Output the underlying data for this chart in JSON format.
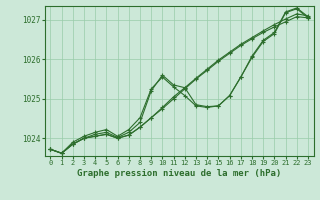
{
  "bg_color": "#cce8d8",
  "grid_color": "#99ccaa",
  "line_color": "#2d6e2d",
  "marker_color": "#2d6e2d",
  "xlabel": "Graphe pression niveau de la mer (hPa)",
  "ylim": [
    1023.55,
    1027.35
  ],
  "xlim": [
    -0.5,
    23.5
  ],
  "yticks": [
    1024,
    1025,
    1026,
    1027
  ],
  "xticks": [
    0,
    1,
    2,
    3,
    4,
    5,
    6,
    7,
    8,
    9,
    10,
    11,
    12,
    13,
    14,
    15,
    16,
    17,
    18,
    19,
    20,
    21,
    22,
    23
  ],
  "series": [
    [
      1023.72,
      1023.62,
      1023.85,
      1024.0,
      1024.05,
      1024.1,
      1024.0,
      1024.08,
      1024.28,
      1024.52,
      1024.75,
      1025.0,
      1025.25,
      1025.5,
      1025.72,
      1025.95,
      1026.15,
      1026.35,
      1026.52,
      1026.68,
      1026.82,
      1026.95,
      1027.08,
      1027.05
    ],
    [
      1023.72,
      1023.62,
      1023.85,
      1024.0,
      1024.05,
      1024.1,
      1024.0,
      1024.08,
      1024.28,
      1024.52,
      1024.78,
      1025.05,
      1025.28,
      1025.52,
      1025.75,
      1025.98,
      1026.18,
      1026.38,
      1026.55,
      1026.72,
      1026.88,
      1027.02,
      1027.15,
      1027.1
    ],
    [
      1023.72,
      1023.62,
      1023.85,
      1024.0,
      1024.1,
      1024.15,
      1024.02,
      1024.15,
      1024.4,
      1025.2,
      1025.6,
      1025.35,
      1025.28,
      1024.85,
      1024.8,
      1024.82,
      1025.08,
      1025.55,
      1026.05,
      1026.45,
      1026.65,
      1027.18,
      1027.28,
      1027.05
    ],
    [
      1023.72,
      1023.62,
      1023.9,
      1024.05,
      1024.15,
      1024.22,
      1024.05,
      1024.22,
      1024.52,
      1025.25,
      1025.55,
      1025.3,
      1025.08,
      1024.82,
      1024.78,
      1024.82,
      1025.08,
      1025.55,
      1026.08,
      1026.48,
      1026.68,
      1027.2,
      1027.3,
      1027.08
    ]
  ]
}
